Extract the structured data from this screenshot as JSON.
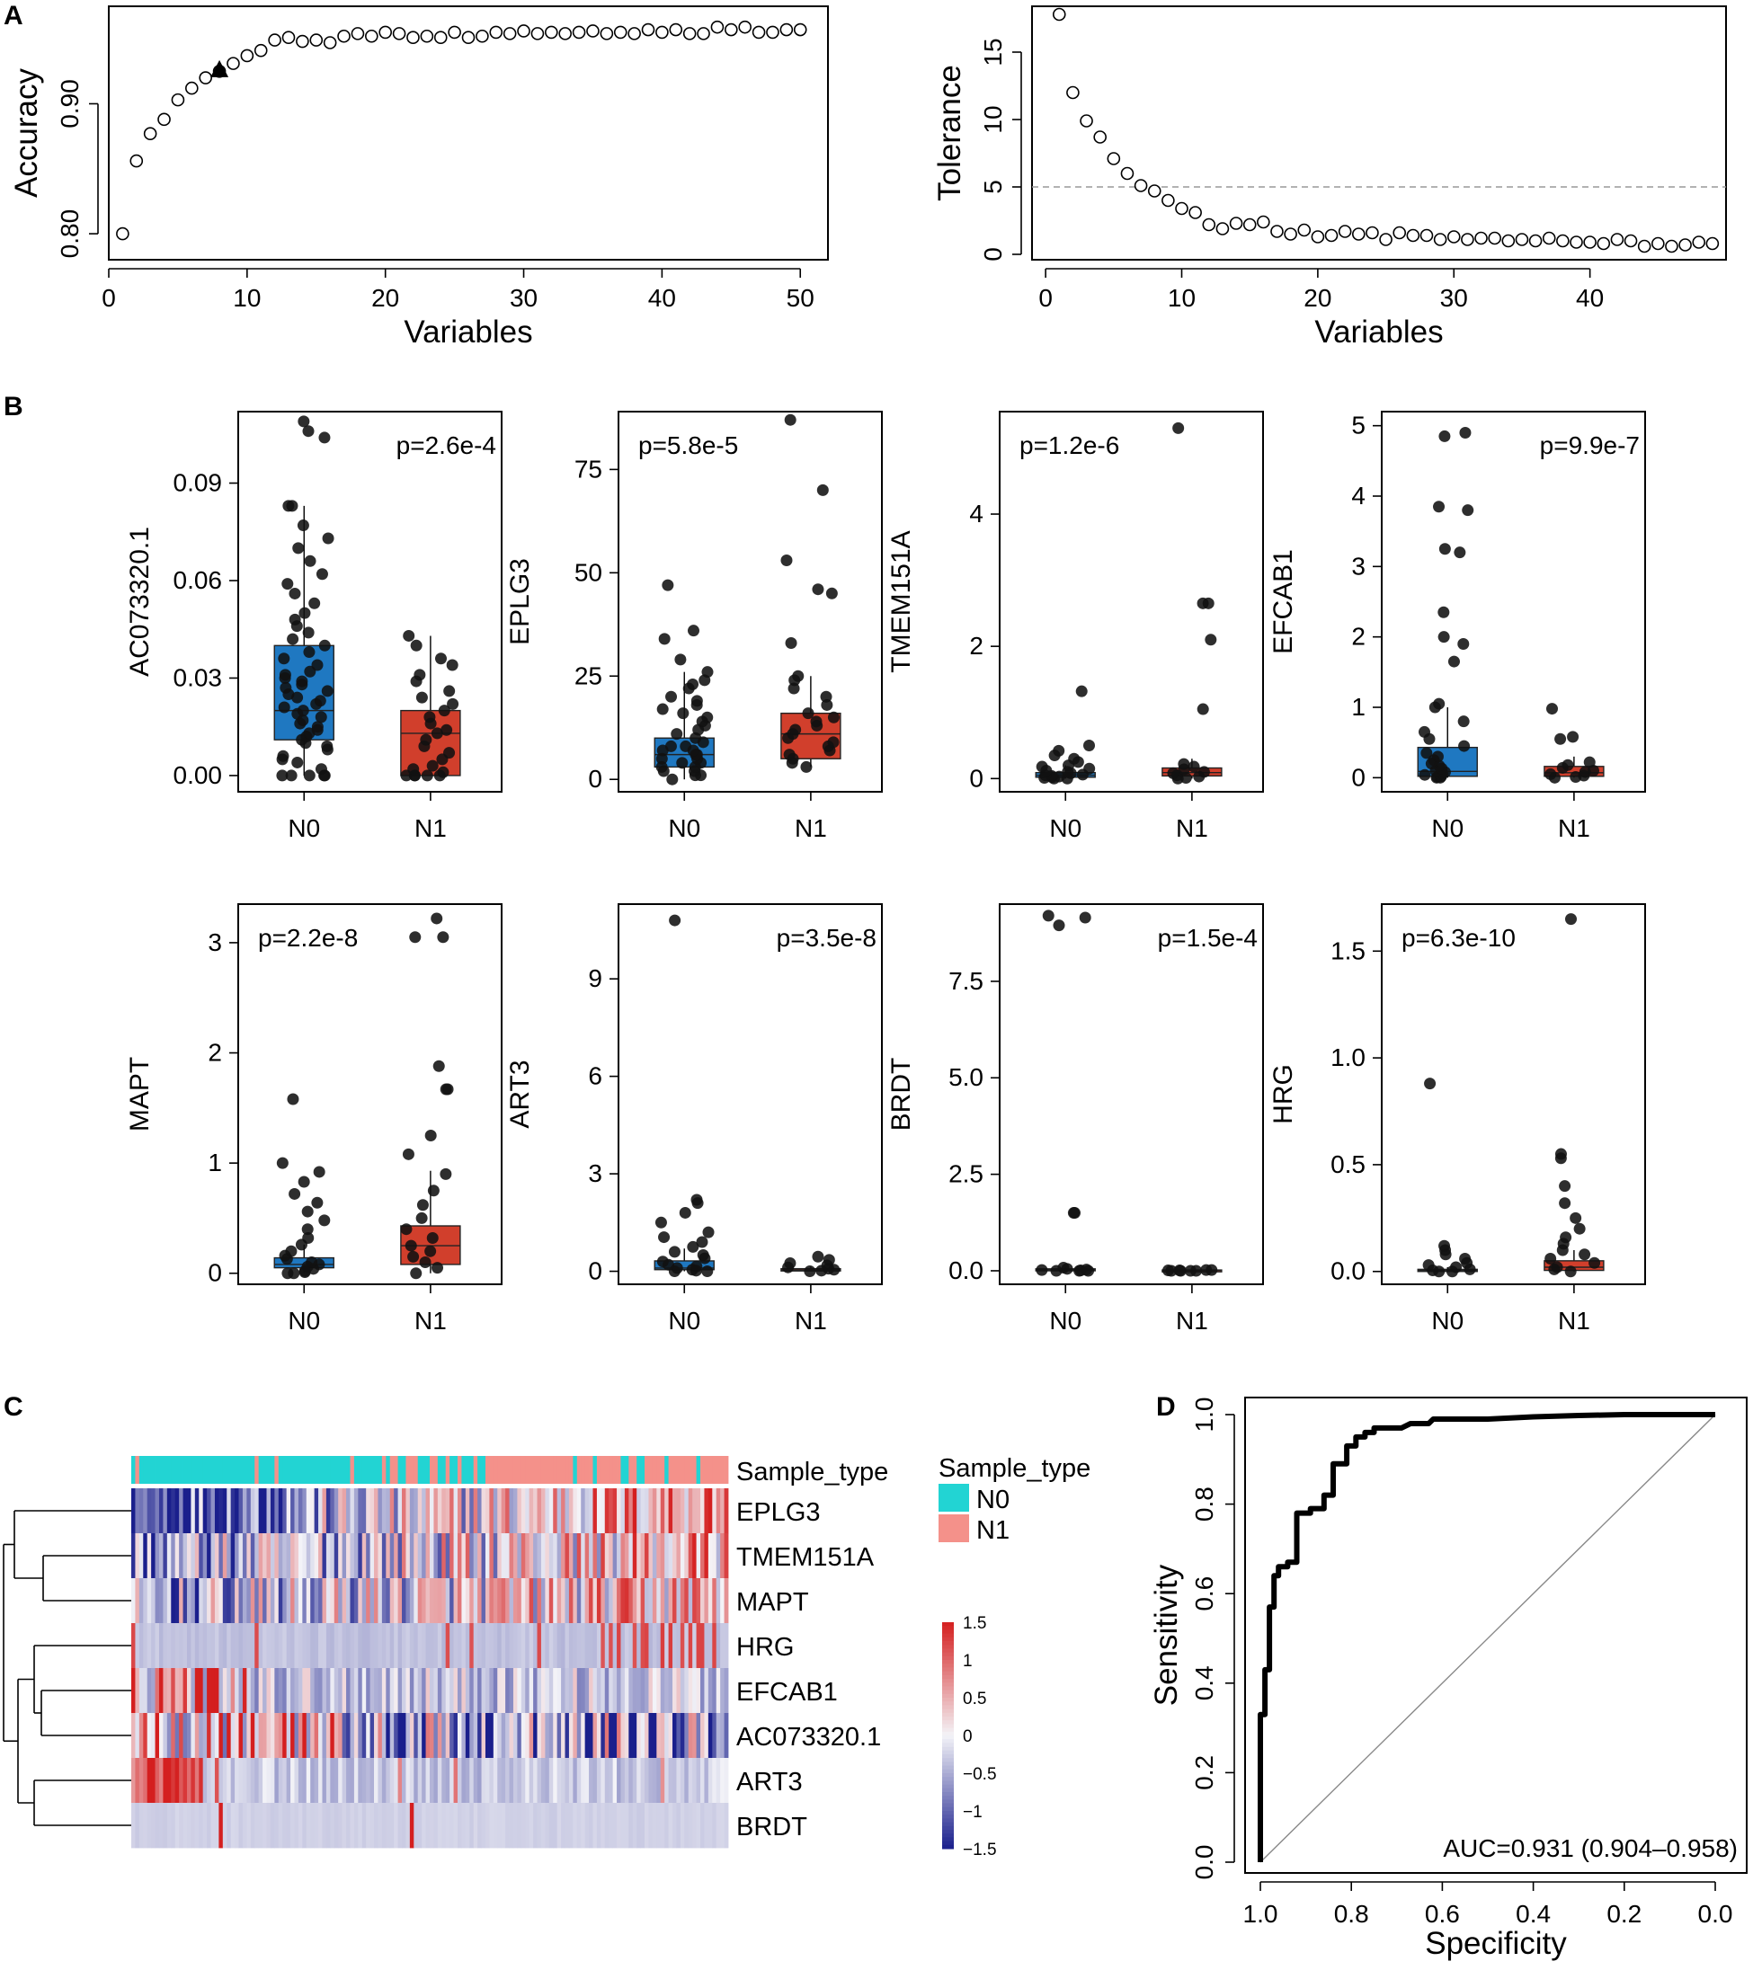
{
  "colors": {
    "N0": "#1f78c1",
    "N1": "#d13f2c",
    "annot_N0": "#22d4d3",
    "annot_N1": "#f4918a",
    "heat_low": "#1a1f8c",
    "heat_mid": "#f4f4f8",
    "heat_high": "#d41f1f"
  },
  "chart_data": [
    {
      "id": "A-left",
      "panel": "A",
      "type": "scatter",
      "xlabel": "Variables",
      "ylabel": "Accuracy",
      "xlim": [
        0,
        52
      ],
      "ylim": [
        0.78,
        0.975
      ],
      "xticks": [
        "0",
        "10",
        "20",
        "30",
        "40",
        "50"
      ],
      "yticks": [
        "0.80",
        "0.90"
      ],
      "x": [
        1,
        2,
        3,
        4,
        5,
        6,
        7,
        8,
        9,
        10,
        11,
        12,
        13,
        14,
        15,
        16,
        17,
        18,
        19,
        20,
        21,
        22,
        23,
        24,
        25,
        26,
        27,
        28,
        29,
        30,
        31,
        32,
        33,
        34,
        35,
        36,
        37,
        38,
        39,
        40,
        41,
        42,
        43,
        44,
        45,
        46,
        47,
        48,
        49,
        50
      ],
      "y": [
        0.8,
        0.856,
        0.877,
        0.888,
        0.903,
        0.912,
        0.92,
        0.925,
        0.931,
        0.937,
        0.941,
        0.949,
        0.951,
        0.948,
        0.949,
        0.947,
        0.952,
        0.954,
        0.952,
        0.955,
        0.954,
        0.951,
        0.952,
        0.951,
        0.955,
        0.951,
        0.952,
        0.955,
        0.954,
        0.956,
        0.954,
        0.955,
        0.954,
        0.955,
        0.956,
        0.954,
        0.955,
        0.954,
        0.957,
        0.955,
        0.957,
        0.954,
        0.954,
        0.959,
        0.957,
        0.959,
        0.955,
        0.955,
        0.957,
        0.957
      ],
      "marker": {
        "x": 8,
        "y": 0.926,
        "shape": "filled-triangle"
      }
    },
    {
      "id": "A-right",
      "panel": "A",
      "type": "scatter",
      "xlabel": "Variables",
      "ylabel": "Tolerance",
      "xlim": [
        -1,
        50
      ],
      "ylim": [
        -0.4,
        18.4
      ],
      "xticks": [
        "0",
        "10",
        "20",
        "30",
        "40"
      ],
      "yticks": [
        "0",
        "5",
        "10",
        "15"
      ],
      "x": [
        1,
        2,
        3,
        4,
        5,
        6,
        7,
        8,
        9,
        10,
        11,
        12,
        13,
        14,
        15,
        16,
        17,
        18,
        19,
        20,
        21,
        22,
        23,
        24,
        25,
        26,
        27,
        28,
        29,
        30,
        31,
        32,
        33,
        34,
        35,
        36,
        37,
        38,
        39,
        40,
        41,
        42,
        43,
        44,
        45,
        46,
        47,
        48,
        49
      ],
      "y": [
        17.8,
        12,
        9.9,
        8.7,
        7.1,
        6,
        5.1,
        4.7,
        4,
        3.4,
        3.1,
        2.2,
        1.9,
        2.3,
        2.2,
        2.4,
        1.7,
        1.5,
        1.8,
        1.3,
        1.4,
        1.7,
        1.5,
        1.6,
        1.1,
        1.6,
        1.4,
        1.4,
        1.1,
        1.3,
        1.1,
        1.2,
        1.2,
        1.0,
        1.1,
        1.0,
        1.2,
        1.0,
        0.9,
        0.9,
        0.8,
        1.1,
        1.0,
        0.6,
        0.8,
        0.6,
        0.7,
        0.9,
        0.8
      ],
      "reference_line": 5
    },
    {
      "id": "B-AC073320.1",
      "panel": "B",
      "type": "box",
      "gene": "AC073320.1",
      "categories": [
        "N0",
        "N1"
      ],
      "pvalue": "p=2.6e-4",
      "pvalue_side": "right",
      "ylim": [
        -0.005,
        0.112
      ],
      "yticks": [
        "0.00",
        "0.03",
        "0.06",
        "0.09"
      ],
      "ytick_values": [
        0,
        0.03,
        0.06,
        0.09
      ],
      "box": {
        "N0": [
          0.011,
          0.02,
          0.04
        ],
        "N1": [
          0.0,
          0.013,
          0.02
        ]
      },
      "whisker": {
        "N0": [
          0.0,
          0.083
        ],
        "N1": [
          0.0,
          0.043
        ]
      },
      "points": {
        "N0": [
          0,
          0,
          0,
          0,
          0,
          0.002,
          0.004,
          0.005,
          0.006,
          0.008,
          0.009,
          0.01,
          0.011,
          0.012,
          0.013,
          0.014,
          0.015,
          0.016,
          0.017,
          0.018,
          0.019,
          0.02,
          0.021,
          0.022,
          0.023,
          0.024,
          0.025,
          0.026,
          0.027,
          0.028,
          0.029,
          0.03,
          0.031,
          0.032,
          0.034,
          0.036,
          0.038,
          0.04,
          0.042,
          0.044,
          0.046,
          0.048,
          0.05,
          0.053,
          0.056,
          0.059,
          0.062,
          0.066,
          0.07,
          0.073,
          0.077,
          0.083,
          0.083,
          0.104,
          0.106,
          0.109
        ],
        "N1": [
          0,
          0,
          0,
          0,
          0,
          0.001,
          0.002,
          0.003,
          0.005,
          0.007,
          0.009,
          0.011,
          0.013,
          0.014,
          0.016,
          0.018,
          0.02,
          0.022,
          0.024,
          0.026,
          0.029,
          0.031,
          0.034,
          0.036,
          0.04,
          0.043
        ]
      }
    },
    {
      "id": "B-EPLG3",
      "panel": "B",
      "type": "box",
      "gene": "EPLG3",
      "categories": [
        "N0",
        "N1"
      ],
      "pvalue": "p=5.8e-5",
      "pvalue_side": "left",
      "ylim": [
        -3,
        89
      ],
      "yticks": [
        "0",
        "25",
        "50",
        "75"
      ],
      "ytick_values": [
        0,
        25,
        50,
        75
      ],
      "box": {
        "N0": [
          3,
          6,
          10
        ],
        "N1": [
          5,
          11,
          16
        ]
      },
      "whisker": {
        "N0": [
          0,
          26
        ],
        "N1": [
          3,
          25
        ]
      },
      "points": {
        "N0": [
          0,
          1,
          1,
          2,
          2,
          3,
          3,
          4,
          4,
          5,
          5,
          6,
          6,
          7,
          7,
          8,
          8,
          9,
          10,
          11,
          12,
          13,
          14,
          15,
          16,
          17,
          18,
          19,
          20,
          22,
          23,
          24,
          26,
          29,
          34,
          36,
          47
        ],
        "N1": [
          3,
          4,
          5,
          6,
          7,
          8,
          9,
          10,
          11,
          12,
          13,
          14,
          15,
          16,
          18,
          20,
          22,
          24,
          25,
          33,
          45,
          46,
          53,
          70,
          87
        ]
      }
    },
    {
      "id": "B-TMEM151A",
      "panel": "B",
      "type": "box",
      "gene": "TMEM151A",
      "categories": [
        "N0",
        "N1"
      ],
      "pvalue": "p=1.2e-6",
      "pvalue_side": "left",
      "ylim": [
        -0.2,
        5.55
      ],
      "yticks": [
        "0",
        "2",
        "4"
      ],
      "ytick_values": [
        0,
        2,
        4
      ],
      "box": {
        "N0": [
          0.02,
          0.05,
          0.09
        ],
        "N1": [
          0.04,
          0.09,
          0.16
        ]
      },
      "whisker": {
        "N0": [
          0,
          0.2
        ],
        "N1": [
          0,
          0.3
        ]
      },
      "points": {
        "N0": [
          0,
          0,
          0.01,
          0.02,
          0.03,
          0.04,
          0.05,
          0.06,
          0.08,
          0.1,
          0.12,
          0.15,
          0.18,
          0.2,
          0.25,
          0.3,
          0.35,
          0.42,
          0.5,
          1.32
        ],
        "N1": [
          0,
          0.01,
          0.03,
          0.05,
          0.08,
          0.1,
          0.14,
          0.18,
          0.22,
          1.05,
          2.1,
          2.65,
          2.65,
          5.3
        ]
      }
    },
    {
      "id": "B-EFCAB1",
      "panel": "B",
      "type": "box",
      "gene": "EFCAB1",
      "categories": [
        "N0",
        "N1"
      ],
      "pvalue": "p=9.9e-7",
      "pvalue_side": "right",
      "ylim": [
        -0.2,
        5.2
      ],
      "yticks": [
        "0",
        "1",
        "2",
        "3",
        "4",
        "5"
      ],
      "ytick_values": [
        0,
        1,
        2,
        3,
        4,
        5
      ],
      "box": {
        "N0": [
          0.02,
          0.09,
          0.43
        ],
        "N1": [
          0.02,
          0.07,
          0.16
        ]
      },
      "whisker": {
        "N0": [
          0,
          1.0
        ],
        "N1": [
          0,
          0.3
        ]
      },
      "points": {
        "N0": [
          0,
          0,
          0.01,
          0.02,
          0.04,
          0.06,
          0.08,
          0.1,
          0.13,
          0.17,
          0.2,
          0.25,
          0.3,
          0.35,
          0.45,
          0.55,
          0.65,
          0.8,
          1.0,
          1.05,
          1.65,
          1.9,
          2.0,
          2.35,
          3.2,
          3.25,
          3.8,
          3.85,
          4.85,
          4.9
        ],
        "N1": [
          0,
          0.01,
          0.03,
          0.05,
          0.08,
          0.1,
          0.14,
          0.18,
          0.22,
          0.55,
          0.58,
          0.98
        ]
      }
    },
    {
      "id": "B-MAPT",
      "panel": "B",
      "type": "box",
      "gene": "MAPT",
      "categories": [
        "N0",
        "N1"
      ],
      "pvalue": "p=2.2e-8",
      "pvalue_side": "left",
      "ylim": [
        -0.1,
        3.35
      ],
      "yticks": [
        "0",
        "1",
        "2",
        "3"
      ],
      "ytick_values": [
        0,
        1,
        2,
        3
      ],
      "box": {
        "N0": [
          0.05,
          0.08,
          0.14
        ],
        "N1": [
          0.08,
          0.25,
          0.43
        ]
      },
      "whisker": {
        "N0": [
          0,
          0.26
        ],
        "N1": [
          0,
          0.93
        ]
      },
      "points": {
        "N0": [
          0,
          0,
          0.01,
          0.02,
          0.04,
          0.06,
          0.08,
          0.1,
          0.13,
          0.16,
          0.2,
          0.26,
          0.32,
          0.4,
          0.48,
          0.56,
          0.64,
          0.72,
          0.83,
          0.92,
          1.0,
          1.58
        ],
        "N1": [
          0,
          0.05,
          0.1,
          0.15,
          0.2,
          0.25,
          0.32,
          0.4,
          0.5,
          0.62,
          0.75,
          0.9,
          1.08,
          1.25,
          1.67,
          1.67,
          1.88,
          3.05,
          3.05,
          3.22
        ]
      }
    },
    {
      "id": "B-ART3",
      "panel": "B",
      "type": "box",
      "gene": "ART3",
      "categories": [
        "N0",
        "N1"
      ],
      "pvalue": "p=3.5e-8",
      "pvalue_side": "right",
      "ylim": [
        -0.4,
        11.3
      ],
      "yticks": [
        "0",
        "3",
        "6",
        "9"
      ],
      "ytick_values": [
        0,
        3,
        6,
        9
      ],
      "box": {
        "N0": [
          0.05,
          0.1,
          0.32
        ],
        "N1": [
          0.01,
          0.04,
          0.08
        ]
      },
      "whisker": {
        "N0": [
          0,
          0.7
        ],
        "N1": [
          0,
          0.15
        ]
      },
      "points": {
        "N0": [
          0,
          0,
          0.02,
          0.05,
          0.1,
          0.15,
          0.2,
          0.3,
          0.4,
          0.5,
          0.6,
          0.75,
          0.9,
          1.05,
          1.2,
          1.5,
          1.8,
          2.1,
          2.2,
          10.8
        ],
        "N1": [
          0,
          0.02,
          0.05,
          0.08,
          0.12,
          0.18,
          0.25,
          0.35,
          0.45
        ]
      }
    },
    {
      "id": "B-BRDT",
      "panel": "B",
      "type": "box",
      "gene": "BRDT",
      "categories": [
        "N0",
        "N1"
      ],
      "pvalue": "p=1.5e-4",
      "pvalue_side": "right",
      "ylim": [
        -0.35,
        9.5
      ],
      "yticks": [
        "0.0",
        "2.5",
        "5.0",
        "7.5"
      ],
      "ytick_values": [
        0,
        2.5,
        5,
        7.5
      ],
      "box": {
        "N0": [
          0,
          0.02,
          0.05
        ],
        "N1": [
          0,
          0.01,
          0.02
        ]
      },
      "whisker": {
        "N0": [
          0,
          0.08
        ],
        "N1": [
          0,
          0.03
        ]
      },
      "points": {
        "N0": [
          0,
          0,
          0,
          0.01,
          0.02,
          0.03,
          0.05,
          0.08,
          1.5,
          1.5,
          8.95,
          9.15,
          9.2
        ],
        "N1": [
          0,
          0,
          0,
          0,
          0.01,
          0.01,
          0.02,
          0.02
        ]
      }
    },
    {
      "id": "B-HRG",
      "panel": "B",
      "type": "box",
      "gene": "HRG",
      "categories": [
        "N0",
        "N1"
      ],
      "pvalue": "p=6.3e-10",
      "pvalue_side": "left",
      "ylim": [
        -0.06,
        1.72
      ],
      "yticks": [
        "0.0",
        "0.5",
        "1.0",
        "1.5"
      ],
      "ytick_values": [
        0,
        0.5,
        1.0,
        1.5
      ],
      "box": {
        "N0": [
          0,
          0.005,
          0.01
        ],
        "N1": [
          0.005,
          0.02,
          0.05
        ]
      },
      "whisker": {
        "N0": [
          0,
          0.02
        ],
        "N1": [
          0,
          0.1
        ]
      },
      "points": {
        "N0": [
          0,
          0,
          0.005,
          0.01,
          0.02,
          0.03,
          0.04,
          0.06,
          0.08,
          0.1,
          0.12,
          0.88
        ],
        "N1": [
          0,
          0.01,
          0.02,
          0.04,
          0.06,
          0.08,
          0.1,
          0.13,
          0.16,
          0.2,
          0.25,
          0.32,
          0.4,
          0.53,
          0.55,
          1.65
        ]
      }
    },
    {
      "id": "C-heatmap",
      "panel": "C",
      "type": "heatmap",
      "annotation_label": "Sample_type",
      "legend_title": "Sample_type",
      "legend_items": [
        "N0",
        "N1"
      ],
      "rows": [
        "EPLG3",
        "TMEM151A",
        "MAPT",
        "HRG",
        "EFCAB1",
        "AC073320.1",
        "ART3",
        "BRDT"
      ],
      "n_samples": 150,
      "scale_range": [
        -1.5,
        1.5
      ],
      "colorbar_ticks": [
        "1.5",
        "1",
        "0.5",
        "0",
        "−0.5",
        "−1",
        "−1.5"
      ],
      "colorbar_values": [
        1.5,
        1,
        0.5,
        0,
        -0.5,
        -1,
        -1.5
      ]
    },
    {
      "id": "D-roc",
      "panel": "D",
      "type": "line",
      "xlabel": "Specificity",
      "ylabel": "Sensitivity",
      "xlim": [
        1.0,
        0.0
      ],
      "ylim": [
        0.0,
        1.0
      ],
      "xticks": [
        "1.0",
        "0.8",
        "0.6",
        "0.4",
        "0.2",
        "0.0"
      ],
      "yticks": [
        "0.0",
        "0.2",
        "0.4",
        "0.6",
        "0.8",
        "1.0"
      ],
      "x": [
        1.0,
        1.0,
        0.99,
        0.99,
        0.98,
        0.98,
        0.97,
        0.97,
        0.96,
        0.96,
        0.95,
        0.95,
        0.94,
        0.94,
        0.92,
        0.92,
        0.89,
        0.89,
        0.86,
        0.86,
        0.84,
        0.84,
        0.81,
        0.81,
        0.79,
        0.79,
        0.77,
        0.77,
        0.75,
        0.75,
        0.72,
        0.72,
        0.69,
        0.67,
        0.63,
        0.62,
        0.55,
        0.5,
        0.4,
        0.3,
        0.2,
        0.1,
        0.0
      ],
      "y": [
        0.0,
        0.33,
        0.33,
        0.43,
        0.43,
        0.57,
        0.57,
        0.64,
        0.64,
        0.66,
        0.66,
        0.66,
        0.66,
        0.67,
        0.67,
        0.78,
        0.78,
        0.79,
        0.79,
        0.82,
        0.82,
        0.89,
        0.89,
        0.93,
        0.93,
        0.95,
        0.95,
        0.96,
        0.96,
        0.97,
        0.97,
        0.97,
        0.97,
        0.98,
        0.98,
        0.99,
        0.99,
        0.99,
        0.995,
        0.998,
        1.0,
        1.0,
        1.0
      ],
      "auc_label": "AUC=0.931 (0.904–0.958)"
    }
  ],
  "panel_labels": {
    "A": "A",
    "B": "B",
    "C": "C",
    "D": "D"
  }
}
